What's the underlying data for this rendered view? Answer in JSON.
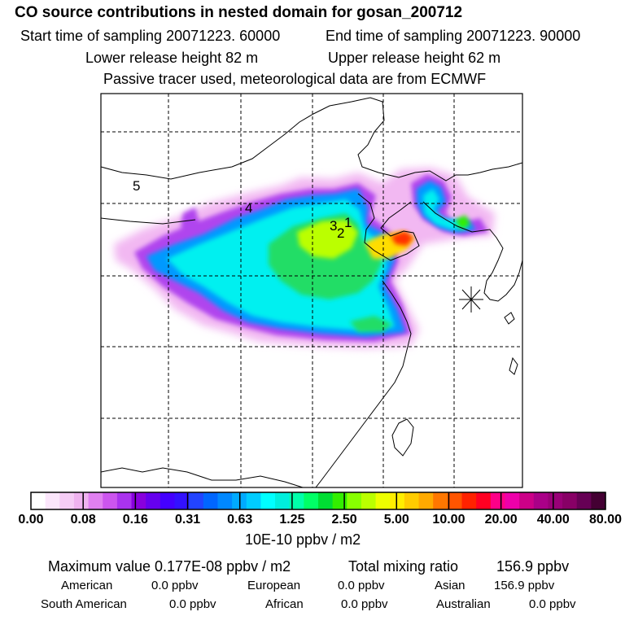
{
  "header": {
    "title": "CO  source contributions in nested domain for gosan_200712",
    "start_label": "Start time of sampling 20071223. 60000",
    "end_label": "End time of sampling 20071223. 90000",
    "lower_release": "Lower release height   82 m",
    "upper_release": "Upper release height   62 m",
    "tracer_note": "Passive tracer used, meteorological data are from ECMWF"
  },
  "map": {
    "receptor_markers": [
      "1",
      "2",
      "3",
      "4",
      "5"
    ]
  },
  "chart_data": {
    "type": "heatmap",
    "title": "CO  source contributions in nested domain for gosan_200712",
    "colorbar_unit": "10E-10 ppbv / m2",
    "colorbar_tick_labels": [
      "0.00",
      "0.08",
      "0.16",
      "0.31",
      "0.63",
      "1.25",
      "2.50",
      "5.00",
      "10.00",
      "20.00",
      "40.00",
      "80.00"
    ],
    "colorbar_colors": [
      "#ffffff",
      "#fbe6fb",
      "#f5ccf5",
      "#efb2ef",
      "#e080f0",
      "#cc55ee",
      "#aa33ee",
      "#8800dd",
      "#6600ee",
      "#4400ff",
      "#3311ff",
      "#2244ff",
      "#0066ff",
      "#0088ff",
      "#00aaff",
      "#00ccff",
      "#00ffff",
      "#00eedd",
      "#00ffaa",
      "#00ff66",
      "#00dd33",
      "#33ee00",
      "#88ff00",
      "#bbff00",
      "#eeff00",
      "#ffee00",
      "#ffcc00",
      "#ffaa00",
      "#ff7700",
      "#ff5500",
      "#ff2200",
      "#ff0022",
      "#ff0088",
      "#ee00aa",
      "#cc0088",
      "#aa0088",
      "#990077",
      "#880066",
      "#660055",
      "#440033"
    ],
    "max_value": "0.177E-08",
    "total_mixing_ratio_ppbv": 156.9
  },
  "stats": {
    "max_label": "Maximum value  0.177E-08 ppbv / m2",
    "total_label": "Total mixing ratio",
    "total_value": "156.9 ppbv",
    "american_label": "American",
    "american_value": "0.0 ppbv",
    "european_label": "European",
    "european_value": "0.0 ppbv",
    "asian_label": "Asian",
    "asian_value": "156.9 ppbv",
    "south_american_label": "South American",
    "south_american_value": "0.0 ppbv",
    "african_label": "African",
    "african_value": "0.0 ppbv",
    "australian_label": "Australian",
    "australian_value": "0.0 ppbv"
  }
}
